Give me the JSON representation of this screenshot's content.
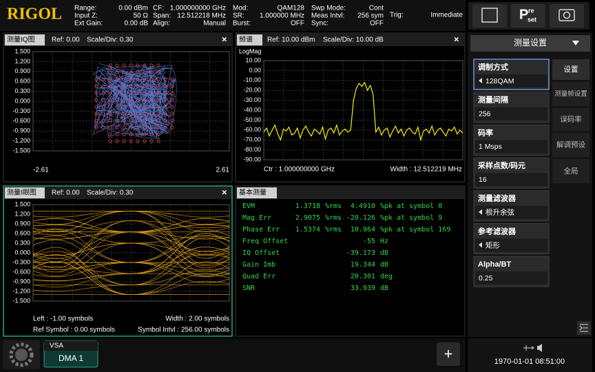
{
  "header": {
    "logo": "RIGOL",
    "params": [
      [
        {
          "label": "Range:",
          "value": "0.00 dBm"
        },
        {
          "label": "Input Z:",
          "value": "50 Ω"
        },
        {
          "label": "Ext Gain:",
          "value": "0.00 dB"
        }
      ],
      [
        {
          "label": "CF:",
          "value": "1.000000000 GHz"
        },
        {
          "label": "Span:",
          "value": "12.512218 MHz"
        },
        {
          "label": "Align:",
          "value": "Manual"
        }
      ],
      [
        {
          "label": "Mod:",
          "value": "QAM128"
        },
        {
          "label": "SR:",
          "value": "1.000000 MHz"
        },
        {
          "label": "Burst:",
          "value": "OFF"
        }
      ],
      [
        {
          "label": "Swp Mode:",
          "value": "Cont"
        },
        {
          "label": "Meas Intvl:",
          "value": "256 sym"
        },
        {
          "label": "Sync:",
          "value": "OFF"
        }
      ],
      [
        {
          "label": "Trig:",
          "value": "Immediate"
        }
      ]
    ],
    "preset": [
      "P",
      "re",
      "set"
    ]
  },
  "panels": {
    "iq": {
      "title": "测量IQ图",
      "ref": "Ref: 0.00",
      "scale": "Scale/Div: 0.30",
      "chart_data": {
        "type": "scatter",
        "xlim": [
          -2.61,
          2.61
        ],
        "xticks": [
          -2.61,
          2.61
        ],
        "ylim": [
          -1.5,
          1.5
        ],
        "yticks": [
          {
            "value": 1.5,
            "label": "1.500"
          },
          {
            "value": 1.2,
            "label": "1.200"
          },
          {
            "value": 0.9,
            "label": "0.900"
          },
          {
            "value": 0.6,
            "label": "0.600"
          },
          {
            "value": 0.3,
            "label": "0.300"
          },
          {
            "value": 0,
            "label": "0.000"
          },
          {
            "value": -0.3,
            "label": "-0.300"
          },
          {
            "value": -0.6,
            "label": "-0.600"
          },
          {
            "value": -0.9,
            "label": "-0.900"
          },
          {
            "value": -1.2,
            "label": "-1.200"
          },
          {
            "value": -1.5,
            "label": "-1.500"
          }
        ],
        "grid": true
      }
    },
    "spectrum": {
      "title": "频谱",
      "ref": "Ref: 10.00 dBm",
      "scale": "Scale/Div: 10.00 dB",
      "center": "Ctr : 1.000000000 GHz",
      "width": "Width : 12.512219 MHz",
      "chart_data": {
        "type": "line",
        "ylabel": "LogMag",
        "color": "#f2f20a",
        "ylim": [
          -90,
          10
        ],
        "yticks": [
          {
            "value": 10,
            "label": "10.00"
          },
          {
            "value": 0,
            "label": "0.00"
          },
          {
            "value": -10,
            "label": "-10.00"
          },
          {
            "value": -20,
            "label": "-20.00"
          },
          {
            "value": -30,
            "label": "-30.00"
          },
          {
            "value": -40,
            "label": "-40.00"
          },
          {
            "value": -50,
            "label": "-50.00"
          },
          {
            "value": -60,
            "label": "-60.00"
          },
          {
            "value": -70,
            "label": "-70.00"
          },
          {
            "value": -80,
            "label": "-80.00"
          },
          {
            "value": -90,
            "label": "-90.00"
          }
        ],
        "grid": true,
        "values": [
          -62,
          -58,
          -66,
          -60,
          -55,
          -64,
          -70,
          -59,
          -61,
          -57,
          -65,
          -63,
          -58,
          -68,
          -60,
          -56,
          -62,
          -66,
          -59,
          -61,
          -64,
          -57,
          -69,
          -60,
          -58,
          -63,
          -55,
          -65,
          -61,
          -59,
          -62,
          -60,
          -30,
          -18,
          -13,
          -16,
          -12,
          -20,
          -15,
          -24,
          -62,
          -57,
          -65,
          -60,
          -58,
          -67,
          -61,
          -56,
          -63,
          -59,
          -66,
          -60,
          -58,
          -62,
          -64,
          -57,
          -70,
          -61,
          -59,
          -63,
          -56,
          -65,
          -60,
          -58,
          -62,
          -66,
          -59,
          -61,
          -57,
          -64,
          -60,
          -63
        ]
      }
    },
    "eye": {
      "title": "测量I眼图",
      "ref": "Ref: 0.00",
      "scale": "Scale/Div: 0.30",
      "left": "Left : -1.00 symbols",
      "width": "Width : 2.00 symbols",
      "ref_symbol": "Ref Symbol : 0.00 symbols",
      "symbol_intvl": "Symbol Intvl : 256.00 symbols",
      "chart_data": {
        "type": "line",
        "ylim": [
          -1.5,
          1.5
        ],
        "yticks": [
          {
            "value": 1.5,
            "label": "1.500"
          },
          {
            "value": 1.2,
            "label": "1.200"
          },
          {
            "value": 0.9,
            "label": "0.900"
          },
          {
            "value": 0.6,
            "label": "0.600"
          },
          {
            "value": 0.3,
            "label": "0.300"
          },
          {
            "value": 0,
            "label": "0.000"
          },
          {
            "value": -0.3,
            "label": "-0.300"
          },
          {
            "value": -0.6,
            "label": "-0.600"
          },
          {
            "value": -0.9,
            "label": "-0.900"
          },
          {
            "value": -1.2,
            "label": "-1.200"
          },
          {
            "value": -1.5,
            "label": "-1.500"
          }
        ],
        "grid": true
      }
    },
    "table": {
      "title": "基本测量",
      "rows": [
        {
          "name": "EVM",
          "rms": "1.3718",
          "rms_unit": "%rms",
          "pk": "4.4910",
          "pk_unit": "%pk at symbol 0"
        },
        {
          "name": "Mag Err",
          "rms": "2.9075",
          "rms_unit": "%rms",
          "pk": "-20.126",
          "pk_unit": "%pk at symbol 9"
        },
        {
          "name": "Phase Err",
          "rms": "1.5374",
          "rms_unit": "%rms",
          "pk": "10.964",
          "pk_unit": "%pk at symbol 169"
        },
        {
          "name": "Freq Offset",
          "pk": "-55",
          "pk_unit": "Hz"
        },
        {
          "name": "IQ Offset",
          "pk": "-39.173",
          "pk_unit": "dB"
        },
        {
          "name": "Gain Imb",
          "pk": "19.344",
          "pk_unit": "dB"
        },
        {
          "name": "Quad Err",
          "pk": "20.301",
          "pk_unit": "deg"
        },
        {
          "name": "SNR",
          "pk": "33.939",
          "pk_unit": "dB"
        }
      ]
    }
  },
  "menu": {
    "title": "测量设置",
    "items": [
      {
        "label": "调制方式",
        "value": "128QAM",
        "arrow": true,
        "selected": true
      },
      {
        "label": "测量间隔",
        "value": "256"
      },
      {
        "label": "码率",
        "value": "1 Msps"
      },
      {
        "label": "采样点数/码元",
        "value": "16"
      },
      {
        "label": "测量滤波器",
        "value": "根升余弦",
        "arrow": true
      },
      {
        "label": "参考滤波器",
        "value": "矩形",
        "arrow": true
      },
      {
        "label": "Alpha/BT",
        "value": "0.25"
      }
    ],
    "tabs": [
      {
        "label": "设置",
        "selected": true
      },
      {
        "label": "测量帧设置"
      },
      {
        "label": "误码率"
      },
      {
        "label": "解调预设"
      },
      {
        "label": "全局"
      }
    ]
  },
  "footer": {
    "app": "VSA",
    "instance": "DMA 1",
    "add": "+",
    "datetime": "1970-01-01 08:51:00"
  }
}
